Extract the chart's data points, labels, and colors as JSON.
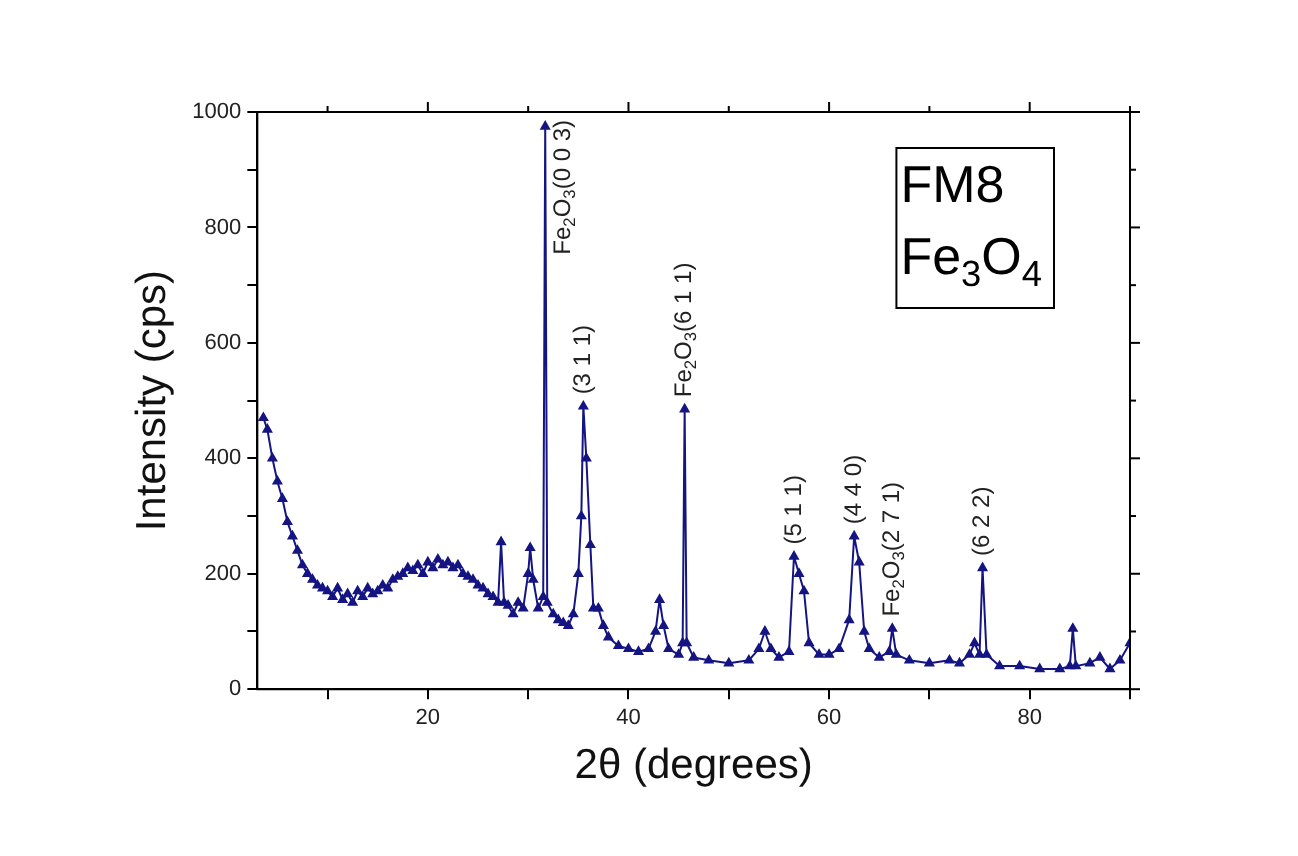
{
  "chart_data": {
    "type": "line",
    "xlabel": "2θ (degrees)",
    "ylabel": "Intensity (cps)",
    "marker": "triangle",
    "xlim": [
      3,
      90
    ],
    "xticks": [
      {
        "value": 10,
        "label": null
      },
      20,
      {
        "value": 30,
        "label": null
      },
      40,
      {
        "value": 50,
        "label": null
      },
      60,
      {
        "value": 70,
        "label": null
      },
      80,
      {
        "value": 90,
        "label": null
      }
    ],
    "ylim": [
      0,
      1000
    ],
    "yticks": [
      0,
      {
        "value": 100,
        "label": null
      },
      200,
      {
        "value": 300,
        "label": null
      },
      400,
      {
        "value": 500,
        "label": null
      },
      600,
      {
        "value": 700,
        "label": null
      },
      800,
      {
        "value": 900,
        "label": null
      },
      1000
    ],
    "series": [
      {
        "color": "#141482",
        "x": [
          3.6,
          4,
          4.5,
          5,
          5.5,
          6,
          6.5,
          7,
          7.5,
          8,
          8.5,
          9,
          9.5,
          10,
          10.5,
          11,
          11.5,
          12,
          12.5,
          13,
          13.5,
          14,
          14.5,
          15,
          15.5,
          16,
          16.5,
          17,
          17.5,
          18,
          18.5,
          19,
          19.5,
          20,
          20.5,
          21,
          21.5,
          22,
          22.5,
          23,
          23.5,
          24,
          24.5,
          25,
          25.5,
          26,
          26.5,
          27,
          27.3,
          27.6,
          28,
          28.5,
          29,
          29.5,
          30,
          30.2,
          30.5,
          31,
          31.5,
          31.7,
          31.9,
          32.5,
          33,
          33.5,
          34,
          34.5,
          35,
          35.3,
          35.5,
          35.8,
          36.2,
          36.5,
          37,
          37.5,
          38,
          39,
          40,
          41,
          42,
          42.7,
          43.1,
          43.5,
          44,
          45,
          45.4,
          45.6,
          45.8,
          46.5,
          48,
          50,
          52,
          53,
          53.6,
          54.2,
          55,
          56,
          56.5,
          57,
          57.5,
          58,
          59,
          60,
          61,
          62,
          62.5,
          63,
          63.5,
          64,
          65,
          66,
          66.3,
          66.7,
          68,
          70,
          72,
          73,
          74,
          74.5,
          75,
          75.3,
          75.7,
          77,
          79,
          81,
          83,
          84,
          84.3,
          84.6,
          86,
          87,
          88,
          89,
          90
        ],
        "values": [
          470,
          450,
          400,
          360,
          330,
          290,
          265,
          240,
          215,
          200,
          190,
          180,
          175,
          170,
          160,
          175,
          155,
          165,
          150,
          170,
          160,
          175,
          165,
          170,
          180,
          175,
          190,
          195,
          200,
          210,
          205,
          215,
          200,
          220,
          210,
          225,
          215,
          220,
          210,
          215,
          200,
          195,
          190,
          180,
          175,
          165,
          160,
          150,
          255,
          150,
          145,
          130,
          150,
          140,
          200,
          245,
          190,
          140,
          160,
          975,
          150,
          130,
          120,
          115,
          110,
          130,
          200,
          300,
          490,
          400,
          250,
          140,
          140,
          110,
          90,
          75,
          70,
          65,
          70,
          100,
          155,
          110,
          70,
          60,
          80,
          485,
          80,
          55,
          50,
          45,
          50,
          70,
          100,
          70,
          55,
          65,
          230,
          200,
          170,
          80,
          60,
          60,
          70,
          120,
          265,
          220,
          100,
          70,
          55,
          65,
          105,
          60,
          50,
          45,
          50,
          45,
          60,
          80,
          60,
          210,
          60,
          40,
          40,
          35,
          35,
          40,
          105,
          40,
          45,
          55,
          35,
          50,
          80
        ]
      }
    ],
    "annotations": [
      {
        "text": "Fe$_{2}$O$_{3}$(0 0 3)",
        "x": 31.7,
        "y": 975
      },
      {
        "text": "(3 1 1)",
        "x": 35.5,
        "y": 490
      },
      {
        "text": "Fe$_{2}$O$_{3}$(6 1 1)",
        "x": 45.6,
        "y": 485
      },
      {
        "text": "(5 1 1)",
        "x": 56.5,
        "y": 230
      },
      {
        "text": "(4 4 0)",
        "x": 62.5,
        "y": 265
      },
      {
        "text": "Fe$_{2}$O$_{3}$(2 7 1)",
        "x": 66.3,
        "y": 105
      },
      {
        "text": "(6 2 2)",
        "x": 75.3,
        "y": 210
      },
      "FM8",
      "Fe$_{3}$O$_{4}$"
    ]
  }
}
